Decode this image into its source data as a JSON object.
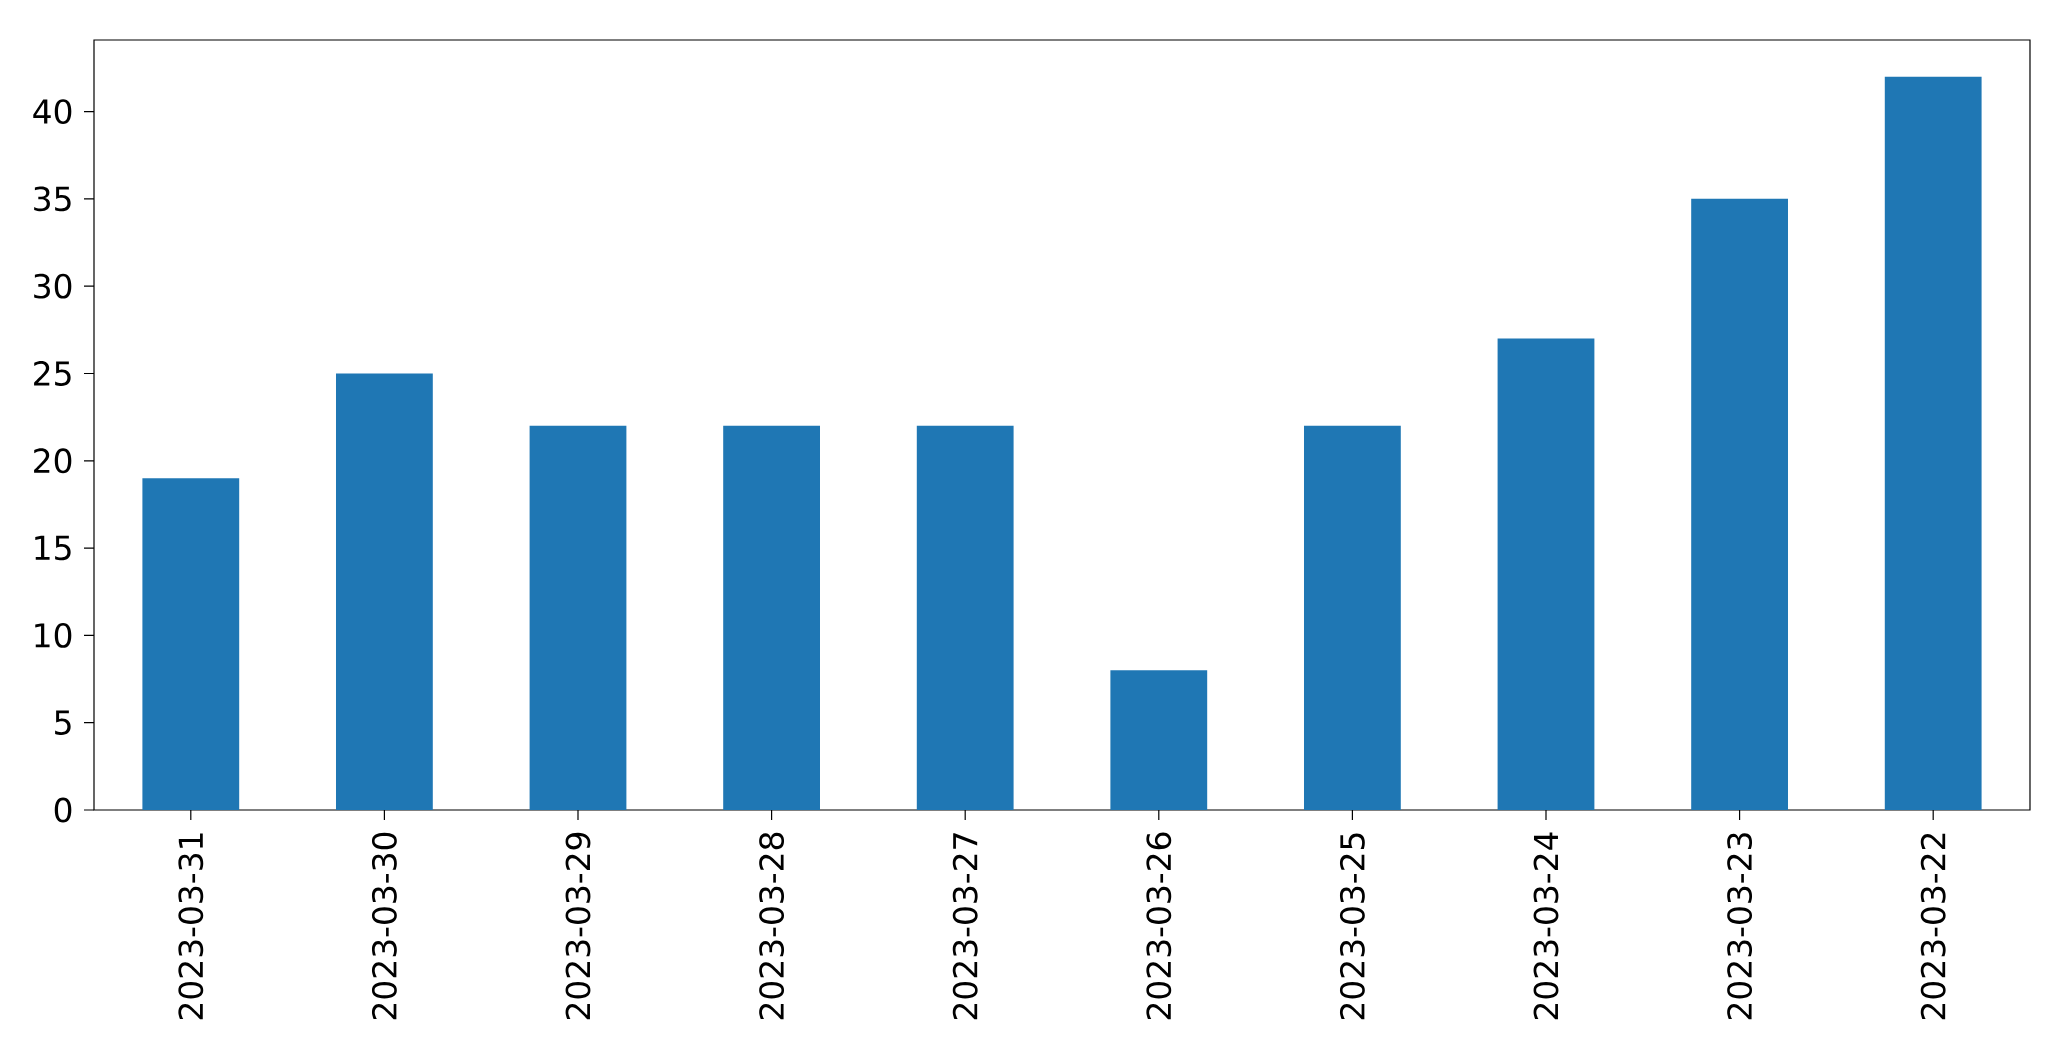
{
  "chart_data": {
    "type": "bar",
    "categories": [
      "2023-03-31",
      "2023-03-30",
      "2023-03-29",
      "2023-03-28",
      "2023-03-27",
      "2023-03-26",
      "2023-03-25",
      "2023-03-24",
      "2023-03-23",
      "2023-03-22"
    ],
    "values": [
      19,
      25,
      22,
      22,
      22,
      8,
      22,
      27,
      35,
      42
    ],
    "color": "#1f77b4",
    "ylim": [
      0,
      44.1
    ],
    "yticks": [
      0,
      5,
      10,
      15,
      20,
      25,
      30,
      35,
      40
    ],
    "grid": false
  }
}
